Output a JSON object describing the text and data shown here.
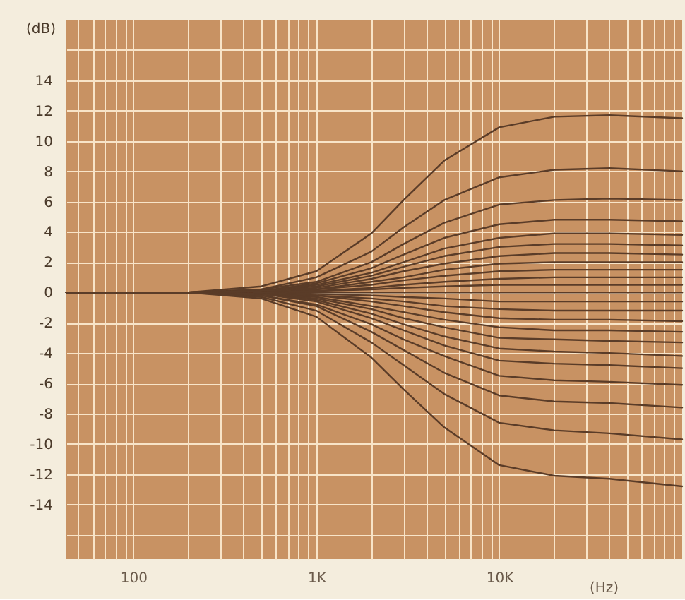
{
  "chart_data": {
    "type": "line",
    "ylabel": "(dB)",
    "xlabel": "(Hz)",
    "log": "x",
    "grid": true,
    "x": [
      43,
      200,
      500,
      1000,
      2000,
      3000,
      5000,
      10000,
      20000,
      40000,
      100000
    ],
    "xlim": [
      43,
      100000
    ],
    "ylim": [
      -17.6,
      18
    ],
    "xticks": [
      {
        "value": 50,
        "label": null
      },
      {
        "value": 60,
        "label": null
      },
      {
        "value": 70,
        "label": null
      },
      {
        "value": 80,
        "label": null
      },
      {
        "value": 90,
        "label": null
      },
      {
        "value": 100,
        "label": "100"
      },
      {
        "value": 200,
        "label": null
      },
      {
        "value": 300,
        "label": null
      },
      {
        "value": 400,
        "label": null
      },
      {
        "value": 500,
        "label": null
      },
      {
        "value": 600,
        "label": null
      },
      {
        "value": 700,
        "label": null
      },
      {
        "value": 800,
        "label": null
      },
      {
        "value": 900,
        "label": null
      },
      {
        "value": 1000,
        "label": "1K"
      },
      {
        "value": 2000,
        "label": null
      },
      {
        "value": 3000,
        "label": null
      },
      {
        "value": 4000,
        "label": null
      },
      {
        "value": 5000,
        "label": null
      },
      {
        "value": 6000,
        "label": null
      },
      {
        "value": 7000,
        "label": null
      },
      {
        "value": 8000,
        "label": null
      },
      {
        "value": 9000,
        "label": null
      },
      {
        "value": 10000,
        "label": "10K"
      },
      {
        "value": 20000,
        "label": null
      },
      {
        "value": 30000,
        "label": null
      },
      {
        "value": 40000,
        "label": null
      },
      {
        "value": 50000,
        "label": null
      },
      {
        "value": 60000,
        "label": null
      },
      {
        "value": 70000,
        "label": null
      },
      {
        "value": 80000,
        "label": null
      },
      {
        "value": 90000,
        "label": null
      }
    ],
    "yticks": [
      {
        "value": -16,
        "label": null
      },
      -14,
      -12,
      -10,
      -8,
      -6,
      -4,
      -2,
      0,
      2,
      4,
      6,
      8,
      10,
      12,
      14,
      {
        "value": 16,
        "label": null
      }
    ],
    "series": [
      {
        "color": "#5a3c28",
        "values": [
          0,
          0,
          0.4,
          1.4,
          3.9,
          6.1,
          8.7,
          10.9,
          11.6,
          11.7,
          11.5
        ]
      },
      {
        "color": "#5a3c28",
        "values": [
          0,
          0,
          0.2,
          1.0,
          2.7,
          4.3,
          6.1,
          7.6,
          8.1,
          8.2,
          8.0
        ]
      },
      {
        "color": "#5a3c28",
        "values": [
          0,
          0,
          0.2,
          0.7,
          2.0,
          3.2,
          4.6,
          5.8,
          6.1,
          6.2,
          6.1
        ]
      },
      {
        "color": "#5a3c28",
        "values": [
          0,
          0,
          0.1,
          0.6,
          1.6,
          2.5,
          3.6,
          4.5,
          4.8,
          4.8,
          4.7
        ]
      },
      {
        "color": "#5a3c28",
        "values": [
          0,
          0,
          0.1,
          0.5,
          1.3,
          2.0,
          2.9,
          3.6,
          3.9,
          3.9,
          3.8
        ]
      },
      {
        "color": "#5a3c28",
        "values": [
          0,
          0,
          0.1,
          0.4,
          1.1,
          1.7,
          2.4,
          3.0,
          3.2,
          3.2,
          3.1
        ]
      },
      {
        "color": "#5a3c28",
        "values": [
          0,
          0,
          0.1,
          0.3,
          0.9,
          1.4,
          1.9,
          2.4,
          2.6,
          2.6,
          2.5
        ]
      },
      {
        "color": "#5a3c28",
        "values": [
          0,
          0,
          0.1,
          0.2,
          0.7,
          1.0,
          1.5,
          1.9,
          2.0,
          2.0,
          2.0
        ]
      },
      {
        "color": "#5a3c28",
        "values": [
          0,
          0,
          0,
          0.2,
          0.5,
          0.8,
          1.1,
          1.4,
          1.5,
          1.5,
          1.5
        ]
      },
      {
        "color": "#5a3c28",
        "values": [
          0,
          0,
          0,
          0.1,
          0.3,
          0.5,
          0.7,
          0.9,
          1.0,
          1.0,
          1.0
        ]
      },
      {
        "color": "#5a3c28",
        "values": [
          0,
          0,
          0,
          0.1,
          0.2,
          0.3,
          0.4,
          0.5,
          0.5,
          0.5,
          0.5
        ]
      },
      {
        "color": "#5a3c28",
        "values": [
          0,
          0,
          0,
          0,
          0,
          0,
          0,
          0,
          0,
          0,
          0
        ]
      },
      {
        "color": "#5a3c28",
        "values": [
          0,
          0,
          0,
          -0.1,
          -0.2,
          -0.3,
          -0.4,
          -0.6,
          -0.6,
          -0.6,
          -0.6
        ]
      },
      {
        "color": "#5a3c28",
        "values": [
          0,
          0,
          0,
          -0.2,
          -0.4,
          -0.6,
          -0.9,
          -1.1,
          -1.2,
          -1.2,
          -1.2
        ]
      },
      {
        "color": "#5a3c28",
        "values": [
          0,
          0,
          -0.1,
          -0.2,
          -0.6,
          -0.9,
          -1.3,
          -1.7,
          -1.8,
          -1.8,
          -1.9
        ]
      },
      {
        "color": "#5a3c28",
        "values": [
          0,
          0,
          -0.1,
          -0.3,
          -0.9,
          -1.3,
          -1.8,
          -2.3,
          -2.5,
          -2.5,
          -2.6
        ]
      },
      {
        "color": "#5a3c28",
        "values": [
          0,
          0,
          -0.1,
          -0.4,
          -1.1,
          -1.7,
          -2.3,
          -3.0,
          -3.1,
          -3.2,
          -3.3
        ]
      },
      {
        "color": "#5a3c28",
        "values": [
          0,
          0,
          -0.1,
          -0.5,
          -1.4,
          -2.1,
          -2.9,
          -3.7,
          -3.9,
          -4.0,
          -4.2
        ]
      },
      {
        "color": "#5a3c28",
        "values": [
          0,
          0,
          -0.1,
          -0.6,
          -1.7,
          -2.5,
          -3.5,
          -4.5,
          -4.7,
          -4.8,
          -5.0
        ]
      },
      {
        "color": "#5a3c28",
        "values": [
          0,
          0,
          -0.2,
          -0.8,
          -2.1,
          -3.1,
          -4.2,
          -5.5,
          -5.8,
          -5.9,
          -6.1
        ]
      },
      {
        "color": "#5a3c28",
        "values": [
          0,
          0,
          -0.2,
          -0.9,
          -2.6,
          -3.8,
          -5.3,
          -6.8,
          -7.2,
          -7.3,
          -7.6
        ]
      },
      {
        "color": "#5a3c28",
        "values": [
          0,
          0,
          -0.3,
          -1.2,
          -3.3,
          -4.8,
          -6.7,
          -8.6,
          -9.1,
          -9.3,
          -9.7
        ]
      },
      {
        "color": "#5a3c28",
        "values": [
          0,
          0,
          -0.4,
          -1.6,
          -4.3,
          -6.4,
          -8.9,
          -11.4,
          -12.1,
          -12.3,
          -12.8
        ]
      }
    ]
  }
}
